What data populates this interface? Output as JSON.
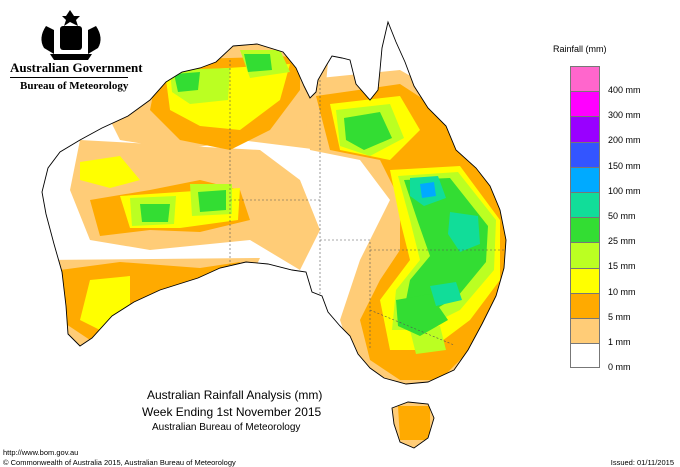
{
  "header": {
    "government": "Australian Government",
    "bureau": "Bureau of Meteorology"
  },
  "legend": {
    "title": "Rainfall (mm)",
    "classes": [
      {
        "label": "400 mm",
        "color": "#ff66cc"
      },
      {
        "label": "300 mm",
        "color": "#ff00ff"
      },
      {
        "label": "200 mm",
        "color": "#9900ff"
      },
      {
        "label": "150 mm",
        "color": "#3355ff"
      },
      {
        "label": "100 mm",
        "color": "#00aaff"
      },
      {
        "label": "50 mm",
        "color": "#11dd99"
      },
      {
        "label": "25 mm",
        "color": "#33dd33"
      },
      {
        "label": "15 mm",
        "color": "#bbff22"
      },
      {
        "label": "10 mm",
        "color": "#ffff00"
      },
      {
        "label": "5 mm",
        "color": "#ffaa00"
      },
      {
        "label": "1 mm",
        "color": "#ffcc77"
      },
      {
        "label": "0 mm",
        "color": "#ffffff"
      }
    ]
  },
  "map": {
    "title": "Australian Rainfall Analysis (mm)",
    "subtitle": "Week Ending 1st November 2015",
    "agency": "Australian Bureau of Meteorology"
  },
  "footer": {
    "url": "http://www.bom.gov.au",
    "copyright": "© Commonwealth of Australia 2015, Australian Bureau of Meteorology",
    "issued": "Issued: 01/11/2015"
  },
  "colors": {
    "coast": "#000000",
    "border": "#555555",
    "background": "#ffffff"
  }
}
